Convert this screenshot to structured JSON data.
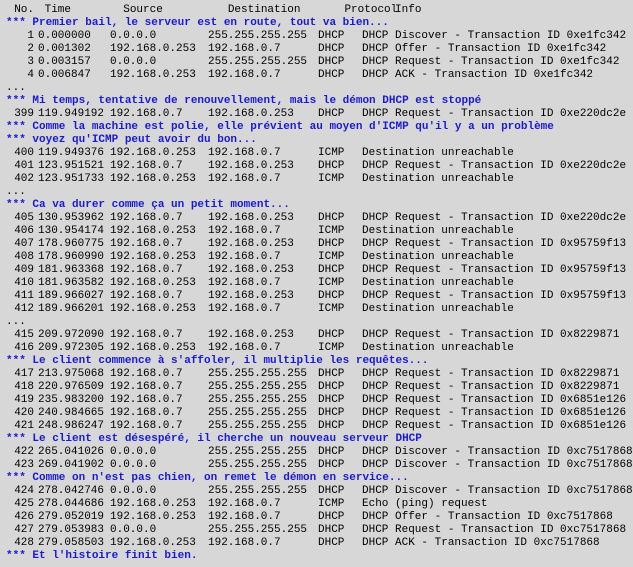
{
  "header": {
    "no": "No.",
    "time": "Time",
    "source": "Source",
    "destination": "Destination",
    "protocol": "Protocol",
    "info": "Info"
  },
  "lines": [
    {
      "t": "c",
      "text": "*** Premier bail, le serveur est en route, tout va bien..."
    },
    {
      "t": "r",
      "no": "1",
      "time": "0.000000",
      "src": "0.0.0.0",
      "dst": "255.255.255.255",
      "proto": "DHCP",
      "info": "DHCP Discover - Transaction ID 0xe1fc342"
    },
    {
      "t": "r",
      "no": "2",
      "time": "0.001302",
      "src": "192.168.0.253",
      "dst": "192.168.0.7",
      "proto": "DHCP",
      "info": "DHCP Offer    - Transaction ID 0xe1fc342"
    },
    {
      "t": "r",
      "no": "3",
      "time": "0.003157",
      "src": "0.0.0.0",
      "dst": "255.255.255.255",
      "proto": "DHCP",
      "info": "DHCP Request  - Transaction ID 0xe1fc342"
    },
    {
      "t": "r",
      "no": "4",
      "time": "0.006847",
      "src": "192.168.0.253",
      "dst": "192.168.0.7",
      "proto": "DHCP",
      "info": "DHCP ACK      - Transaction ID 0xe1fc342"
    },
    {
      "t": "e",
      "text": "..."
    },
    {
      "t": "c",
      "text": "*** Mi temps, tentative de renouvellement, mais le démon DHCP est stoppé"
    },
    {
      "t": "r",
      "no": "399",
      "time": "119.949192",
      "src": "192.168.0.7",
      "dst": "192.168.0.253",
      "proto": "DHCP",
      "info": "DHCP Request  - Transaction ID 0xe220dc2e"
    },
    {
      "t": "c",
      "text": "*** Comme la machine est polie, elle prévient au moyen d'ICMP qu'il y a un problème"
    },
    {
      "t": "c",
      "text": "*** voyez qu'ICMP peut avoir du bon..."
    },
    {
      "t": "r",
      "no": "400",
      "time": "119.949376",
      "src": "192.168.0.253",
      "dst": "192.168.0.7",
      "proto": "ICMP",
      "info": "Destination unreachable"
    },
    {
      "t": "r",
      "no": "401",
      "time": "123.951521",
      "src": "192.168.0.7",
      "dst": "192.168.0.253",
      "proto": "DHCP",
      "info": "DHCP Request  - Transaction ID 0xe220dc2e"
    },
    {
      "t": "r",
      "no": "402",
      "time": "123.951733",
      "src": "192.168.0.253",
      "dst": "192.168.0.7",
      "proto": "ICMP",
      "info": "Destination unreachable"
    },
    {
      "t": "e",
      "text": "..."
    },
    {
      "t": "c",
      "text": "*** Ca va durer comme ça un petit moment..."
    },
    {
      "t": "r",
      "no": "405",
      "time": "130.953962",
      "src": "192.168.0.7",
      "dst": "192.168.0.253",
      "proto": "DHCP",
      "info": "DHCP Request  - Transaction ID 0xe220dc2e"
    },
    {
      "t": "r",
      "no": "406",
      "time": "130.954174",
      "src": "192.168.0.253",
      "dst": "192.168.0.7",
      "proto": "ICMP",
      "info": "Destination unreachable"
    },
    {
      "t": "r",
      "no": "407",
      "time": "178.960775",
      "src": "192.168.0.7",
      "dst": "192.168.0.253",
      "proto": "DHCP",
      "info": "DHCP Request  - Transaction ID 0x95759f13"
    },
    {
      "t": "r",
      "no": "408",
      "time": "178.960990",
      "src": "192.168.0.253",
      "dst": "192.168.0.7",
      "proto": "ICMP",
      "info": "Destination unreachable"
    },
    {
      "t": "r",
      "no": "409",
      "time": "181.963368",
      "src": "192.168.0.7",
      "dst": "192.168.0.253",
      "proto": "DHCP",
      "info": "DHCP Request  - Transaction ID 0x95759f13"
    },
    {
      "t": "r",
      "no": "410",
      "time": "181.963582",
      "src": "192.168.0.253",
      "dst": "192.168.0.7",
      "proto": "ICMP",
      "info": "Destination unreachable"
    },
    {
      "t": "r",
      "no": "411",
      "time": "189.966027",
      "src": "192.168.0.7",
      "dst": "192.168.0.253",
      "proto": "DHCP",
      "info": "DHCP Request  - Transaction ID 0x95759f13"
    },
    {
      "t": "r",
      "no": "412",
      "time": "189.966201",
      "src": "192.168.0.253",
      "dst": "192.168.0.7",
      "proto": "ICMP",
      "info": "Destination unreachable"
    },
    {
      "t": "e",
      "text": "..."
    },
    {
      "t": "r",
      "no": "415",
      "time": "209.972090",
      "src": "192.168.0.7",
      "dst": "192.168.0.253",
      "proto": "DHCP",
      "info": "DHCP Request  - Transaction ID 0x8229871"
    },
    {
      "t": "r",
      "no": "416",
      "time": "209.972305",
      "src": "192.168.0.253",
      "dst": "192.168.0.7",
      "proto": "ICMP",
      "info": "Destination unreachable"
    },
    {
      "t": "c",
      "text": "*** Le client commence à s'affoler, il multiplie les requêtes..."
    },
    {
      "t": "r",
      "no": "417",
      "time": "213.975068",
      "src": "192.168.0.7",
      "dst": "255.255.255.255",
      "proto": "DHCP",
      "info": "DHCP Request  - Transaction ID 0x8229871"
    },
    {
      "t": "r",
      "no": "418",
      "time": "220.976509",
      "src": "192.168.0.7",
      "dst": "255.255.255.255",
      "proto": "DHCP",
      "info": "DHCP Request  - Transaction ID 0x8229871"
    },
    {
      "t": "r",
      "no": "419",
      "time": "235.983200",
      "src": "192.168.0.7",
      "dst": "255.255.255.255",
      "proto": "DHCP",
      "info": "DHCP Request  - Transaction ID 0x6851e126"
    },
    {
      "t": "r",
      "no": "420",
      "time": "240.984665",
      "src": "192.168.0.7",
      "dst": "255.255.255.255",
      "proto": "DHCP",
      "info": "DHCP Request  - Transaction ID 0x6851e126"
    },
    {
      "t": "r",
      "no": "421",
      "time": "248.986247",
      "src": "192.168.0.7",
      "dst": "255.255.255.255",
      "proto": "DHCP",
      "info": "DHCP Request  - Transaction ID 0x6851e126"
    },
    {
      "t": "c",
      "text": "*** Le client est désespéré, il cherche un nouveau serveur DHCP"
    },
    {
      "t": "r",
      "no": "422",
      "time": "265.041026",
      "src": "0.0.0.0",
      "dst": "255.255.255.255",
      "proto": "DHCP",
      "info": "DHCP Discover - Transaction ID 0xc7517868"
    },
    {
      "t": "r",
      "no": "423",
      "time": "269.041902",
      "src": "0.0.0.0",
      "dst": "255.255.255.255",
      "proto": "DHCP",
      "info": "DHCP Discover - Transaction ID 0xc7517868"
    },
    {
      "t": "c",
      "text": "*** Comme on n'est pas chien, on remet le démon en service..."
    },
    {
      "t": "r",
      "no": "424",
      "time": "278.042746",
      "src": "0.0.0.0",
      "dst": "255.255.255.255",
      "proto": "DHCP",
      "info": "DHCP Discover - Transaction ID 0xc7517868"
    },
    {
      "t": "r",
      "no": "425",
      "time": "278.044686",
      "src": "192.168.0.253",
      "dst": "192.168.0.7",
      "proto": "ICMP",
      "info": "Echo (ping) request"
    },
    {
      "t": "r",
      "no": "426",
      "time": "279.052019",
      "src": "192.168.0.253",
      "dst": "192.168.0.7",
      "proto": "DHCP",
      "info": "DHCP Offer    - Transaction ID 0xc7517868"
    },
    {
      "t": "r",
      "no": "427",
      "time": "279.053983",
      "src": "0.0.0.0",
      "dst": "255.255.255.255",
      "proto": "DHCP",
      "info": "DHCP Request  - Transaction ID 0xc7517868"
    },
    {
      "t": "r",
      "no": "428",
      "time": "279.058503",
      "src": "192.168.0.253",
      "dst": "192.168.0.7",
      "proto": "DHCP",
      "info": "DHCP ACK      - Transaction ID 0xc7517868"
    },
    {
      "t": "c",
      "text": "*** Et l'histoire finit bien."
    }
  ]
}
